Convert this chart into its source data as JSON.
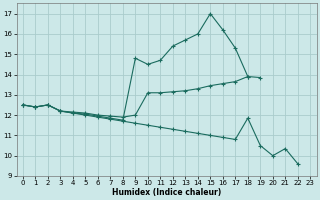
{
  "xlabel": "Humidex (Indice chaleur)",
  "bg_color": "#cce8e8",
  "grid_color": "#aacccc",
  "line_color": "#1a6b5e",
  "xlim": [
    -0.5,
    23.5
  ],
  "ylim": [
    9,
    17.5
  ],
  "xticks": [
    0,
    1,
    2,
    3,
    4,
    5,
    6,
    7,
    8,
    9,
    10,
    11,
    12,
    13,
    14,
    15,
    16,
    17,
    18,
    19,
    20,
    21,
    22,
    23
  ],
  "yticks": [
    9,
    10,
    11,
    12,
    13,
    14,
    15,
    16,
    17
  ],
  "line1_x": [
    0,
    1,
    2,
    3,
    4,
    5,
    6,
    7,
    8,
    9,
    10,
    11,
    12,
    13,
    14,
    15,
    16,
    17,
    18
  ],
  "line1_y": [
    12.5,
    12.4,
    12.5,
    12.2,
    12.1,
    12.05,
    11.95,
    11.85,
    11.75,
    14.8,
    14.5,
    14.7,
    15.4,
    15.7,
    16.0,
    17.0,
    16.2,
    15.3,
    13.9
  ],
  "line2_x": [
    0,
    1,
    2,
    3,
    4,
    5,
    6,
    7,
    8,
    9,
    10,
    11,
    12,
    13,
    14,
    15,
    16,
    17,
    18,
    19
  ],
  "line2_y": [
    12.5,
    12.4,
    12.5,
    12.2,
    12.15,
    12.1,
    12.0,
    11.95,
    11.9,
    12.0,
    13.1,
    13.1,
    13.15,
    13.2,
    13.3,
    13.45,
    13.55,
    13.65,
    13.9,
    13.85
  ],
  "line3_x": [
    0,
    1,
    2,
    3,
    4,
    5,
    6,
    7,
    8,
    9,
    10,
    11,
    12,
    13,
    14,
    15,
    16,
    17,
    18,
    19,
    20,
    21,
    22
  ],
  "line3_y": [
    12.5,
    12.4,
    12.5,
    12.2,
    12.1,
    12.0,
    11.9,
    11.8,
    11.7,
    11.6,
    11.5,
    11.4,
    11.3,
    11.2,
    11.1,
    11.0,
    10.9,
    10.8,
    11.85,
    10.5,
    10.0,
    10.35,
    9.6
  ]
}
